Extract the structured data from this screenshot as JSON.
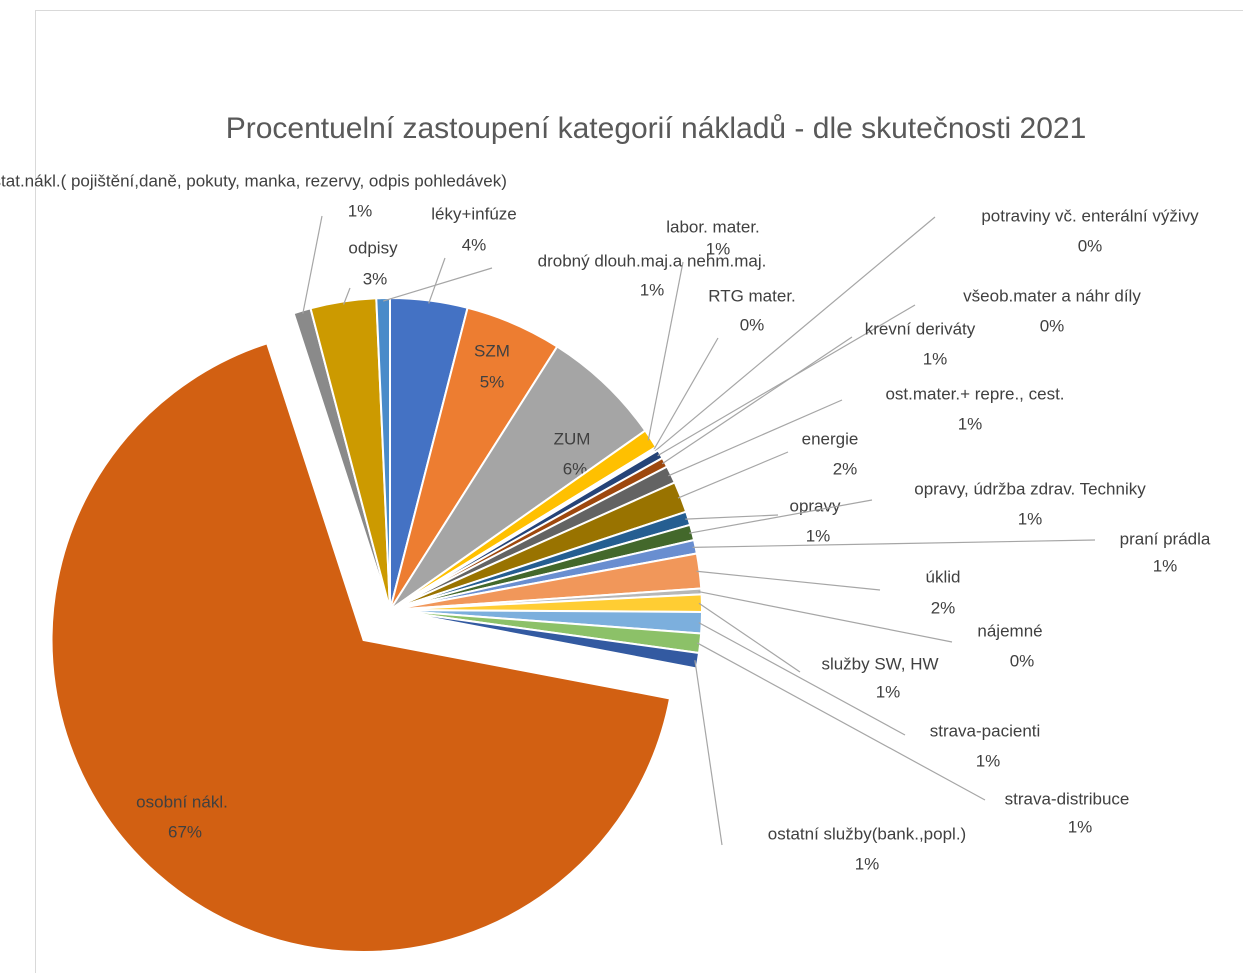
{
  "chart_data": {
    "type": "pie",
    "title": "Procentuelní zastoupení kategorií nákladů - dle skutečnosti 2021",
    "categories": [
      "léky+infúze",
      "SZM",
      "ZUM",
      "labor. mater.",
      "RTG mater.",
      "potraviny vč. enterální výživy",
      "všeob.mater a náhr díly",
      "krevní deriváty",
      "ost.mater.+ repre., cest.",
      "energie",
      "opravy",
      "opravy, údržba zdrav. Techniky",
      "praní prádla",
      "úklid",
      "nájemné",
      "služby SW, HW",
      "strava-pacienti",
      "strava-distribuce",
      "ostatní služby(bank.,popl.)",
      "osobní nákl.",
      "ostat.nákl.( pojištění,daně, pokuty, manka, rezervy, odpis pohledávek)",
      "odpisy",
      "drobný dlouh.maj.a nehm.maj."
    ],
    "values": [
      4,
      5,
      6.25,
      1.0,
      0.1,
      0.1,
      0.45,
      0.5,
      0.9,
      1.6,
      0.7,
      0.8,
      0.7,
      1.8,
      0.3,
      0.9,
      1.1,
      1.0,
      0.8,
      67,
      0.9,
      3.4,
      0.7
    ],
    "value_labels": [
      "4%",
      "5%",
      "6%",
      "1%",
      "0%",
      "0%",
      "0%",
      "1%",
      "1%",
      "2%",
      "1%",
      "1%",
      "1%",
      "2%",
      "0%",
      "1%",
      "1%",
      "1%",
      "1%",
      "67%",
      "1%",
      "3%",
      "1%"
    ],
    "colors": [
      "#4472c4",
      "#ed7d31",
      "#a5a5a5",
      "#ffc000",
      "#5b9bd5",
      "#70ad47",
      "#264478",
      "#9e480e",
      "#636363",
      "#997300",
      "#255e91",
      "#43682b",
      "#698ed0",
      "#f1975a",
      "#b7b7b7",
      "#ffcd33",
      "#7cafdd",
      "#8cc168",
      "#335aa1",
      "#d26012",
      "#8a8a8a",
      "#cc9a00",
      "#4a8bc9"
    ]
  }
}
